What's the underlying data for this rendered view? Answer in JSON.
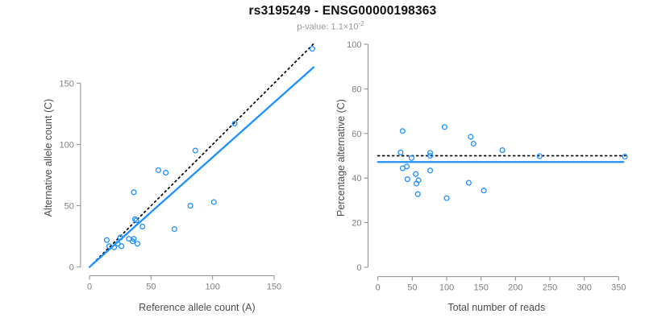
{
  "header": {
    "title": "rs3195249 - ENSG00000198363",
    "pvalue_label": "p-value: ",
    "pvalue_mantissa": "1.1",
    "pvalue_times": "×",
    "pvalue_base": "10",
    "pvalue_exponent": "-2"
  },
  "colors": {
    "point": "#1E90FF",
    "fit_line": "#1E90FF",
    "identity_line": "#000000",
    "axis_line": "#8c8c8c",
    "tick_label": "#808080",
    "axis_title": "#4d4d4d",
    "title": "#111111",
    "subtitle": "#9a9a9a",
    "background": "#ffffff"
  },
  "chart_data": [
    {
      "type": "scatter",
      "title": "",
      "xlabel": "Reference allele count (A)",
      "ylabel": "Alternative allele count (C)",
      "xlim": [
        0,
        182
      ],
      "ylim": [
        0,
        178
      ],
      "xticks": [
        0,
        50,
        100,
        150
      ],
      "yticks": [
        0,
        50,
        100,
        150
      ],
      "grid": false,
      "legend": "none",
      "points": [
        {
          "x": 14,
          "y": 22
        },
        {
          "x": 36,
          "y": 61
        },
        {
          "x": 56,
          "y": 79
        },
        {
          "x": 62,
          "y": 77
        },
        {
          "x": 86,
          "y": 95
        },
        {
          "x": 16,
          "y": 17
        },
        {
          "x": 25,
          "y": 24
        },
        {
          "x": 37,
          "y": 39
        },
        {
          "x": 38,
          "y": 38
        },
        {
          "x": 23,
          "y": 19
        },
        {
          "x": 20,
          "y": 16
        },
        {
          "x": 43,
          "y": 33
        },
        {
          "x": 26,
          "y": 17
        },
        {
          "x": 32,
          "y": 23
        },
        {
          "x": 36,
          "y": 23
        },
        {
          "x": 35,
          "y": 21
        },
        {
          "x": 82,
          "y": 50
        },
        {
          "x": 101,
          "y": 53
        },
        {
          "x": 39,
          "y": 19
        },
        {
          "x": 69,
          "y": 31
        },
        {
          "x": 118,
          "y": 117
        },
        {
          "x": 181,
          "y": 178
        }
      ],
      "lines": [
        {
          "name": "identity-line",
          "style": "dotted",
          "color": "#000000",
          "from": [
            0,
            0
          ],
          "to": [
            182,
            182
          ]
        },
        {
          "name": "fit-line",
          "style": "solid",
          "color": "#1E90FF",
          "from": [
            0,
            0
          ],
          "to": [
            182,
            162.9
          ]
        }
      ]
    },
    {
      "type": "scatter",
      "title": "",
      "xlabel": "Total number of reads",
      "ylabel": "Percentage alternative (C)",
      "xlim": [
        0,
        359
      ],
      "ylim": [
        0,
        100
      ],
      "xticks": [
        0,
        50,
        100,
        150,
        200,
        250,
        300,
        350
      ],
      "yticks": [
        0,
        20,
        40,
        60,
        80,
        100
      ],
      "grid": false,
      "legend": "none",
      "points": [
        {
          "x": 36,
          "y": 61.1
        },
        {
          "x": 97,
          "y": 62.9
        },
        {
          "x": 135,
          "y": 58.5
        },
        {
          "x": 139,
          "y": 55.4
        },
        {
          "x": 181,
          "y": 52.5
        },
        {
          "x": 33,
          "y": 51.5
        },
        {
          "x": 49,
          "y": 49.0
        },
        {
          "x": 76,
          "y": 51.3
        },
        {
          "x": 76,
          "y": 50.0
        },
        {
          "x": 42,
          "y": 45.2
        },
        {
          "x": 36,
          "y": 44.4
        },
        {
          "x": 76,
          "y": 43.4
        },
        {
          "x": 43,
          "y": 39.5
        },
        {
          "x": 55,
          "y": 41.8
        },
        {
          "x": 59,
          "y": 39.0
        },
        {
          "x": 56,
          "y": 37.5
        },
        {
          "x": 132,
          "y": 37.9
        },
        {
          "x": 154,
          "y": 34.4
        },
        {
          "x": 58,
          "y": 32.8
        },
        {
          "x": 100,
          "y": 31.0
        },
        {
          "x": 235,
          "y": 49.8
        },
        {
          "x": 359,
          "y": 49.6
        }
      ],
      "lines": [
        {
          "name": "null-line",
          "style": "dotted",
          "color": "#000000",
          "from": [
            0,
            50
          ],
          "to": [
            360,
            50
          ]
        },
        {
          "name": "fit-line",
          "style": "solid",
          "color": "#1E90FF",
          "from": [
            0,
            47.2
          ],
          "to": [
            357,
            47.2
          ]
        }
      ]
    }
  ]
}
